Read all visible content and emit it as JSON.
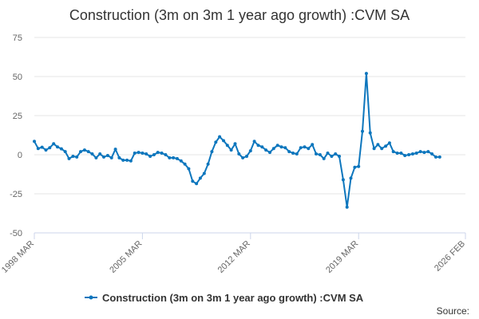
{
  "chart_data": {
    "type": "line",
    "title": "Construction (3m on 3m 1 year ago growth) :CVM SA",
    "xlabel": "",
    "ylabel": "",
    "ylim": [
      -50,
      75
    ],
    "yticks": [
      75,
      50,
      25,
      0,
      -25,
      -50
    ],
    "xlim": [
      "1998-03",
      "2026-02"
    ],
    "xticks": [
      "1998 MAR",
      "2005 MAR",
      "2012 MAR",
      "2019 MAR",
      "2026 FEB"
    ],
    "xtick_dates": [
      "1998-03",
      "2005-03",
      "2012-03",
      "2019-03",
      "2026-02"
    ],
    "grid": true,
    "legend_position": "bottom",
    "series": [
      {
        "name": "Construction (3m on 3m 1 year ago growth) :CVM SA",
        "color": "#0d76bd",
        "points": [
          [
            "1998-03",
            8.5
          ],
          [
            "1998-06",
            4.0
          ],
          [
            "1998-09",
            4.8
          ],
          [
            "1998-12",
            3.0
          ],
          [
            "1999-03",
            4.5
          ],
          [
            "1999-06",
            7.0
          ],
          [
            "1999-09",
            5.0
          ],
          [
            "1999-12",
            3.8
          ],
          [
            "2000-03",
            2.0
          ],
          [
            "2000-06",
            -2.5
          ],
          [
            "2000-09",
            -1.0
          ],
          [
            "2000-12",
            -1.5
          ],
          [
            "2001-03",
            2.0
          ],
          [
            "2001-06",
            3.0
          ],
          [
            "2001-09",
            2.0
          ],
          [
            "2001-12",
            0.5
          ],
          [
            "2002-03",
            -2.0
          ],
          [
            "2002-06",
            0.5
          ],
          [
            "2002-09",
            -1.5
          ],
          [
            "2002-12",
            -0.5
          ],
          [
            "2003-03",
            -2.0
          ],
          [
            "2003-06",
            3.5
          ],
          [
            "2003-09",
            -2.0
          ],
          [
            "2003-12",
            -3.5
          ],
          [
            "2004-03",
            -3.5
          ],
          [
            "2004-06",
            -4.0
          ],
          [
            "2004-09",
            1.0
          ],
          [
            "2004-12",
            1.5
          ],
          [
            "2005-03",
            1.0
          ],
          [
            "2005-06",
            0.5
          ],
          [
            "2005-09",
            -1.0
          ],
          [
            "2005-12",
            0.0
          ],
          [
            "2006-03",
            1.5
          ],
          [
            "2006-06",
            1.0
          ],
          [
            "2006-09",
            0.0
          ],
          [
            "2006-12",
            -2.0
          ],
          [
            "2007-03",
            -2.0
          ],
          [
            "2007-06",
            -2.5
          ],
          [
            "2007-09",
            -4.0
          ],
          [
            "2007-12",
            -6.0
          ],
          [
            "2008-03",
            -9.0
          ],
          [
            "2008-06",
            -17.0
          ],
          [
            "2008-09",
            -18.5
          ],
          [
            "2008-12",
            -15.0
          ],
          [
            "2009-03",
            -12.0
          ],
          [
            "2009-06",
            -6.0
          ],
          [
            "2009-09",
            2.0
          ],
          [
            "2009-12",
            8.0
          ],
          [
            "2010-03",
            11.5
          ],
          [
            "2010-06",
            9.0
          ],
          [
            "2010-09",
            6.0
          ],
          [
            "2010-12",
            3.0
          ],
          [
            "2011-03",
            7.0
          ],
          [
            "2011-06",
            0.5
          ],
          [
            "2011-09",
            -2.0
          ],
          [
            "2011-12",
            -1.0
          ],
          [
            "2012-03",
            2.5
          ],
          [
            "2012-06",
            8.5
          ],
          [
            "2012-09",
            6.0
          ],
          [
            "2012-12",
            5.0
          ],
          [
            "2013-03",
            3.0
          ],
          [
            "2013-06",
            1.5
          ],
          [
            "2013-09",
            4.0
          ],
          [
            "2013-12",
            6.0
          ],
          [
            "2014-03",
            5.0
          ],
          [
            "2014-06",
            4.5
          ],
          [
            "2014-09",
            2.0
          ],
          [
            "2014-12",
            1.0
          ],
          [
            "2015-03",
            0.5
          ],
          [
            "2015-06",
            4.5
          ],
          [
            "2015-09",
            5.0
          ],
          [
            "2015-12",
            4.0
          ],
          [
            "2016-03",
            6.5
          ],
          [
            "2016-06",
            0.5
          ],
          [
            "2016-09",
            0.0
          ],
          [
            "2016-12",
            -2.5
          ],
          [
            "2017-03",
            1.0
          ],
          [
            "2017-06",
            -1.0
          ],
          [
            "2017-09",
            0.5
          ],
          [
            "2017-12",
            -1.0
          ],
          [
            "2018-03",
            -16.0
          ],
          [
            "2018-06",
            -33.5
          ],
          [
            "2018-09",
            -15.0
          ],
          [
            "2018-12",
            -8.0
          ],
          [
            "2019-03",
            -7.5
          ],
          [
            "2019-06",
            15.0
          ],
          [
            "2019-09",
            52.0
          ],
          [
            "2019-12",
            14.0
          ],
          [
            "2020-03",
            4.0
          ],
          [
            "2020-06",
            6.5
          ],
          [
            "2020-09",
            4.0
          ],
          [
            "2020-12",
            5.5
          ],
          [
            "2021-03",
            7.5
          ],
          [
            "2021-06",
            2.0
          ],
          [
            "2021-09",
            1.0
          ],
          [
            "2021-12",
            1.0
          ],
          [
            "2022-03",
            -0.5
          ],
          [
            "2022-06",
            0.0
          ],
          [
            "2022-09",
            0.5
          ],
          [
            "2022-12",
            1.0
          ],
          [
            "2023-03",
            2.0
          ],
          [
            "2023-06",
            1.5
          ],
          [
            "2023-09",
            2.0
          ],
          [
            "2023-12",
            0.5
          ],
          [
            "2024-03",
            -1.5
          ],
          [
            "2024-06",
            -1.5
          ]
        ]
      }
    ]
  },
  "credits": "Source:"
}
